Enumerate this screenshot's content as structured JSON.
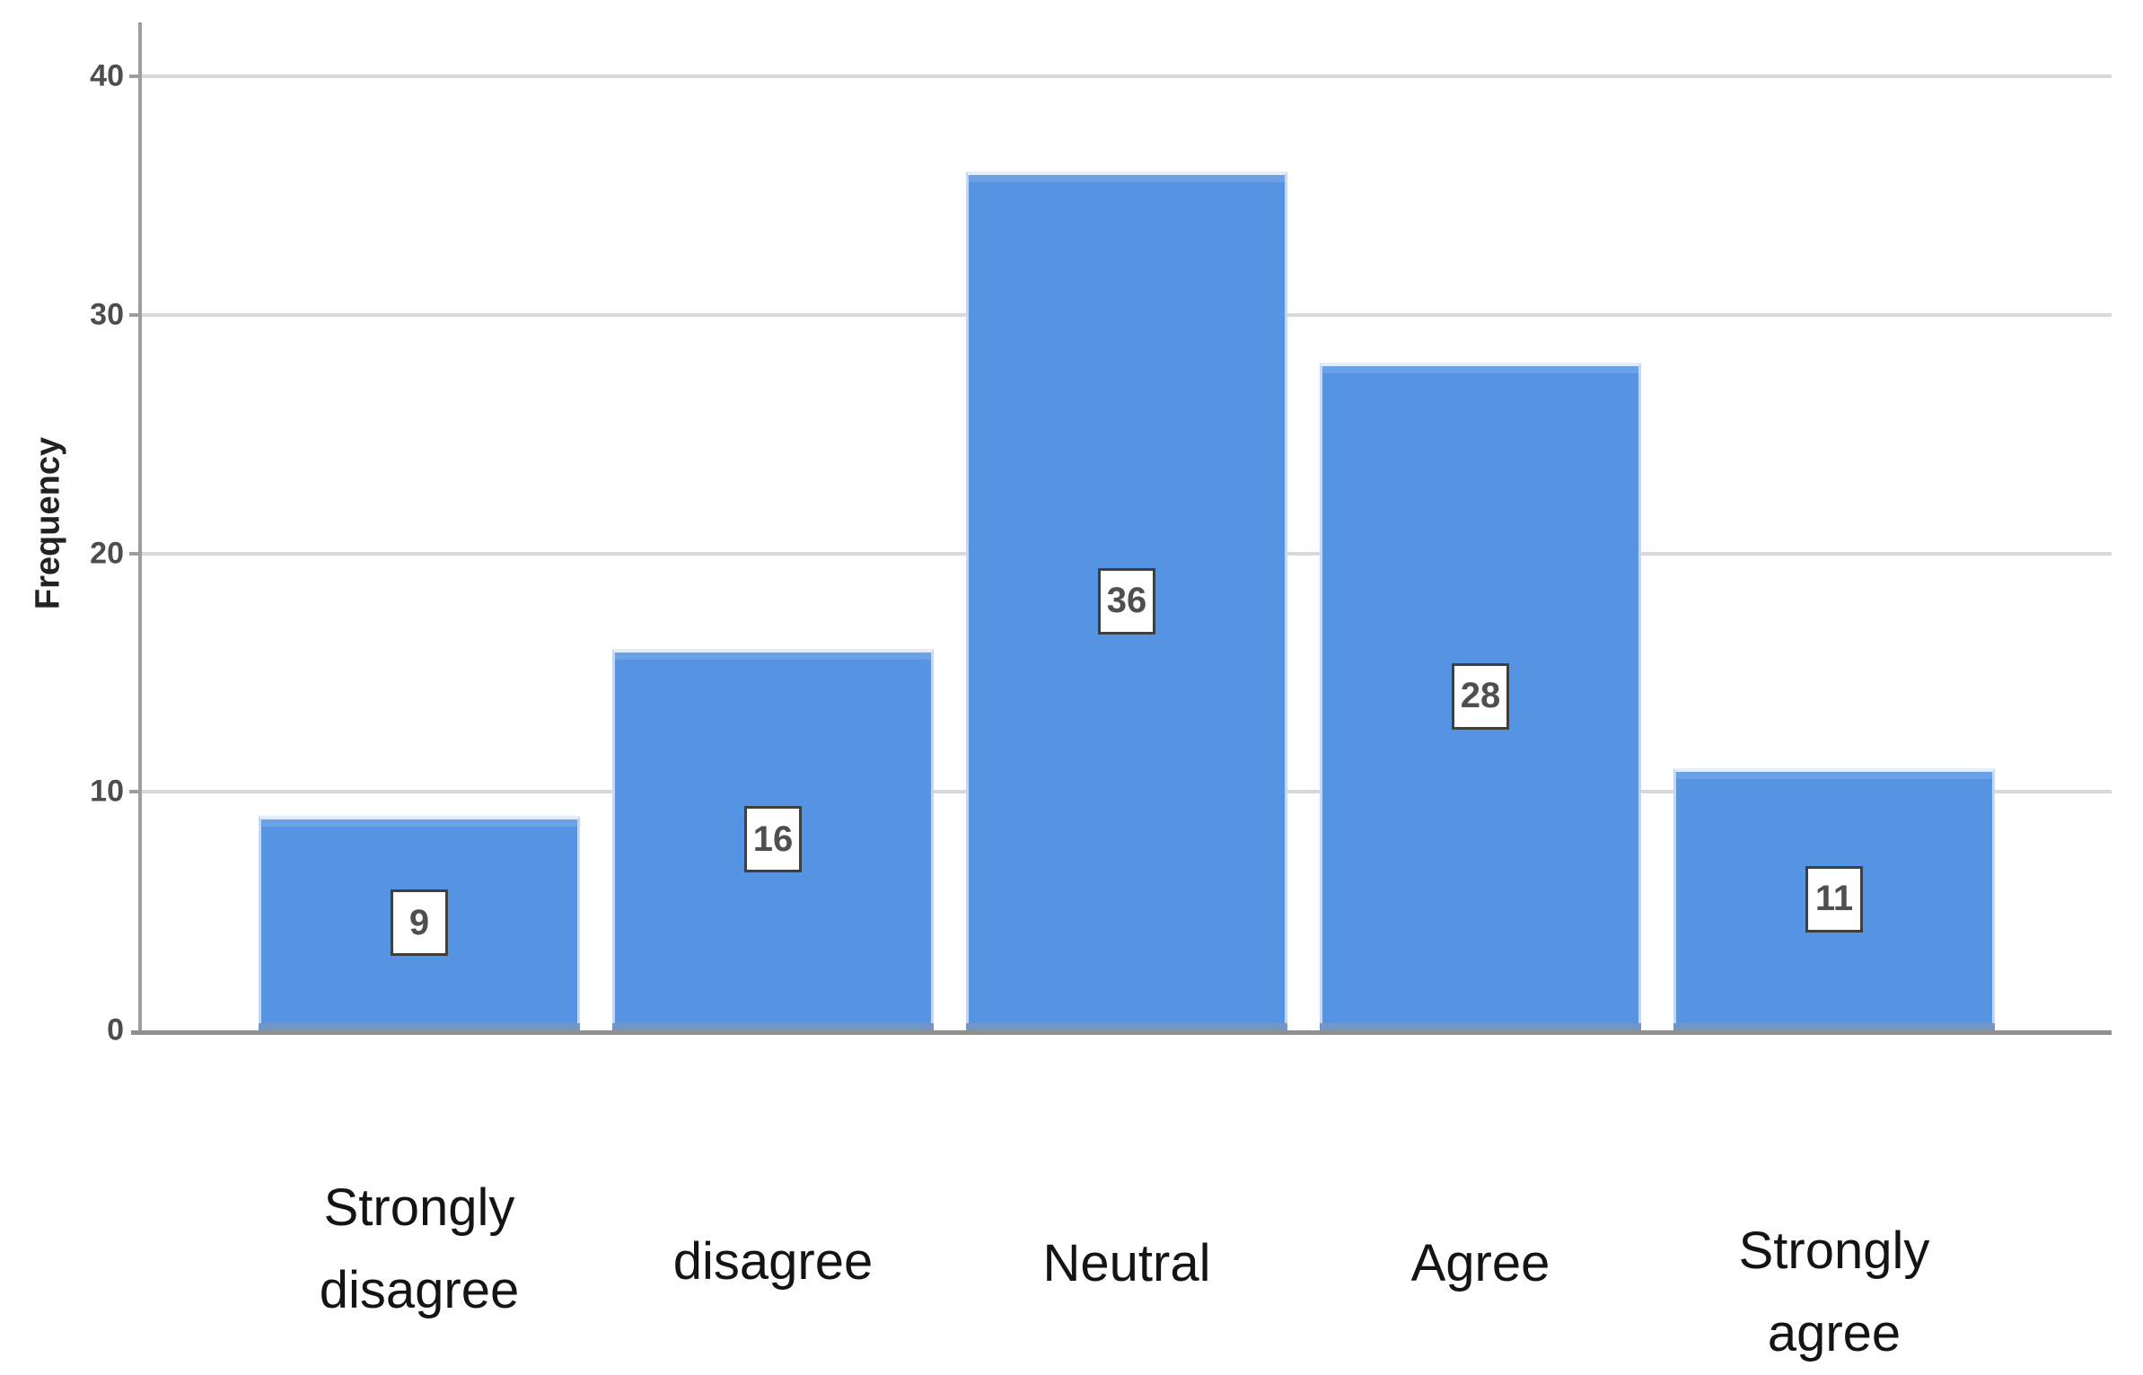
{
  "chart_data": {
    "type": "bar",
    "title": "",
    "categories": [
      "Strongly\ndisagree",
      "disagree",
      "Neutral",
      "Agree",
      "Strongly\nagree"
    ],
    "values": [
      9,
      16,
      36,
      28,
      11
    ],
    "xlabel": "",
    "ylabel": "Frequency",
    "yticks": [
      0,
      10,
      20,
      30,
      40
    ],
    "ylim": [
      0,
      42
    ],
    "grid": "horizontal",
    "legend": "none",
    "bar_color": "#5494e3",
    "bar_edge_highlight": "#e4edfa",
    "gridline_color": "#d9d9d9",
    "axis_color": "#8f8f8f",
    "value_label_box_border": "#3f3f3f",
    "value_label_color": "#4f4f4f"
  }
}
